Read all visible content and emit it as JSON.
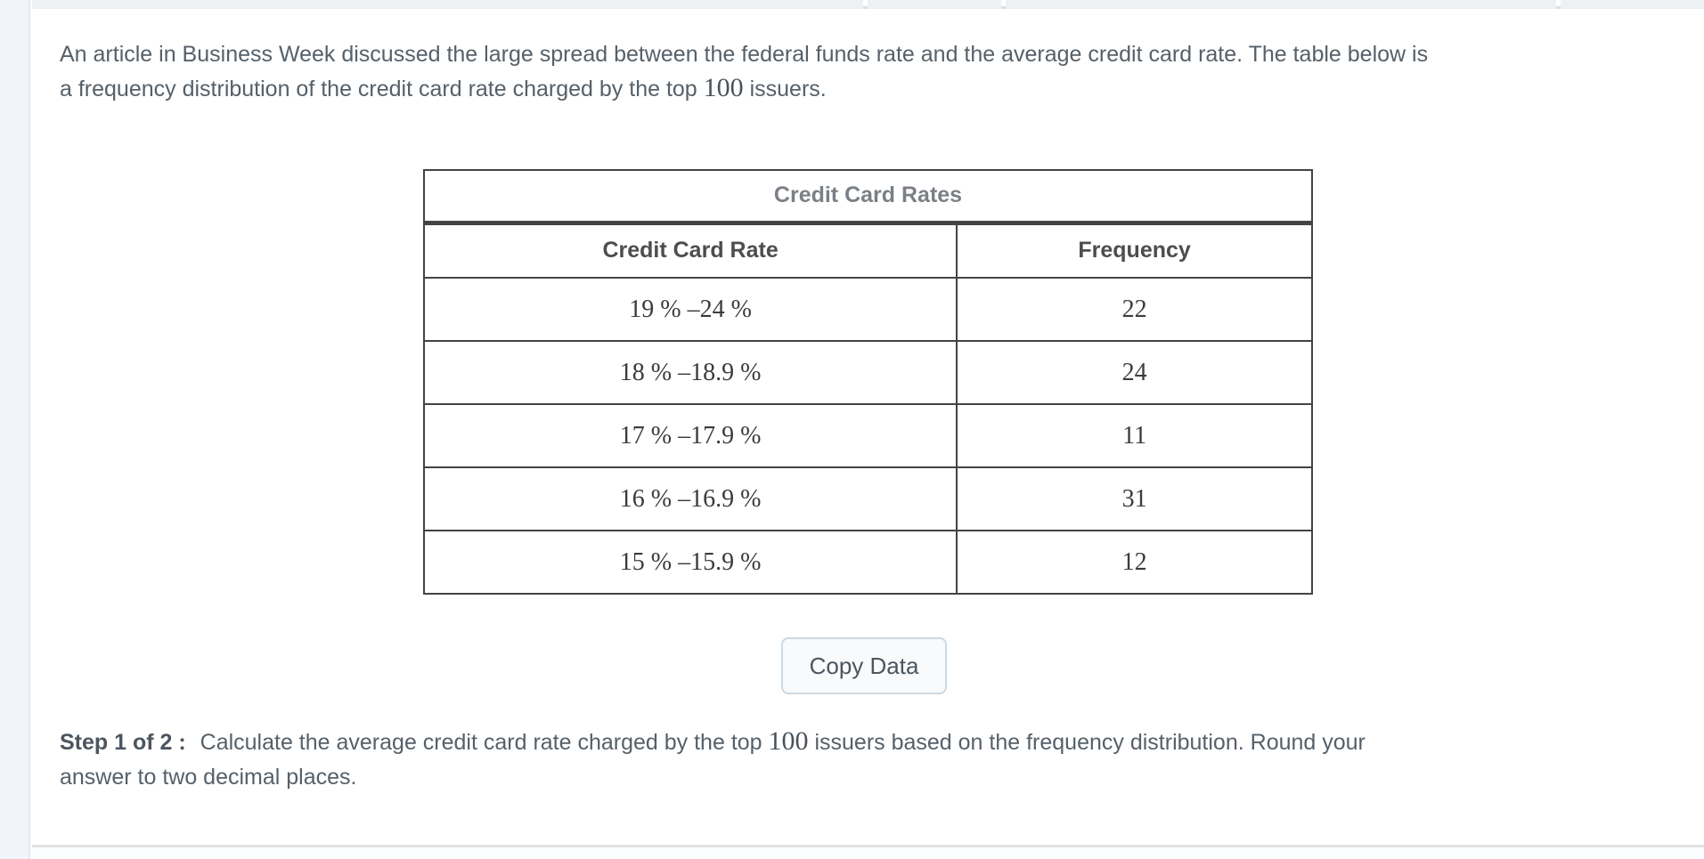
{
  "intro": {
    "line1": "An article in Business Week discussed the large spread between the federal funds rate and the average credit card rate. The table below is",
    "line2_before": "a frequency distribution of the credit card rate charged by the top ",
    "number": "100",
    "line2_after": " issuers."
  },
  "table": {
    "title": "Credit Card Rates",
    "columns": {
      "rate": "Credit Card Rate",
      "frequency": "Frequency"
    },
    "rows": [
      {
        "rate": "19 % –24 %",
        "frequency": "22"
      },
      {
        "rate": "18 % –18.9 %",
        "frequency": "24"
      },
      {
        "rate": "17 % –17.9 %",
        "frequency": "11"
      },
      {
        "rate": "16 % –16.9 %",
        "frequency": "31"
      },
      {
        "rate": "15 % –15.9 %",
        "frequency": "12"
      }
    ]
  },
  "copy_button": {
    "label": "Copy Data"
  },
  "step": {
    "label": "Step 1 of 2 :",
    "line1_before": " Calculate the average credit card rate charged by the top ",
    "number": "100",
    "line1_after": " issuers based on the frequency distribution. Round your",
    "line2": "answer to two decimal places."
  },
  "colors": {
    "body_text": "#566069",
    "table_border": "#434343",
    "table_title_text": "#7b8086",
    "table_header_text": "#4d4d4d",
    "button_bg": "#f8fafc",
    "button_border": "#ccd9e3",
    "left_rail_bg": "#f1f5f9",
    "top_bar_bg": "#eef1f4"
  }
}
